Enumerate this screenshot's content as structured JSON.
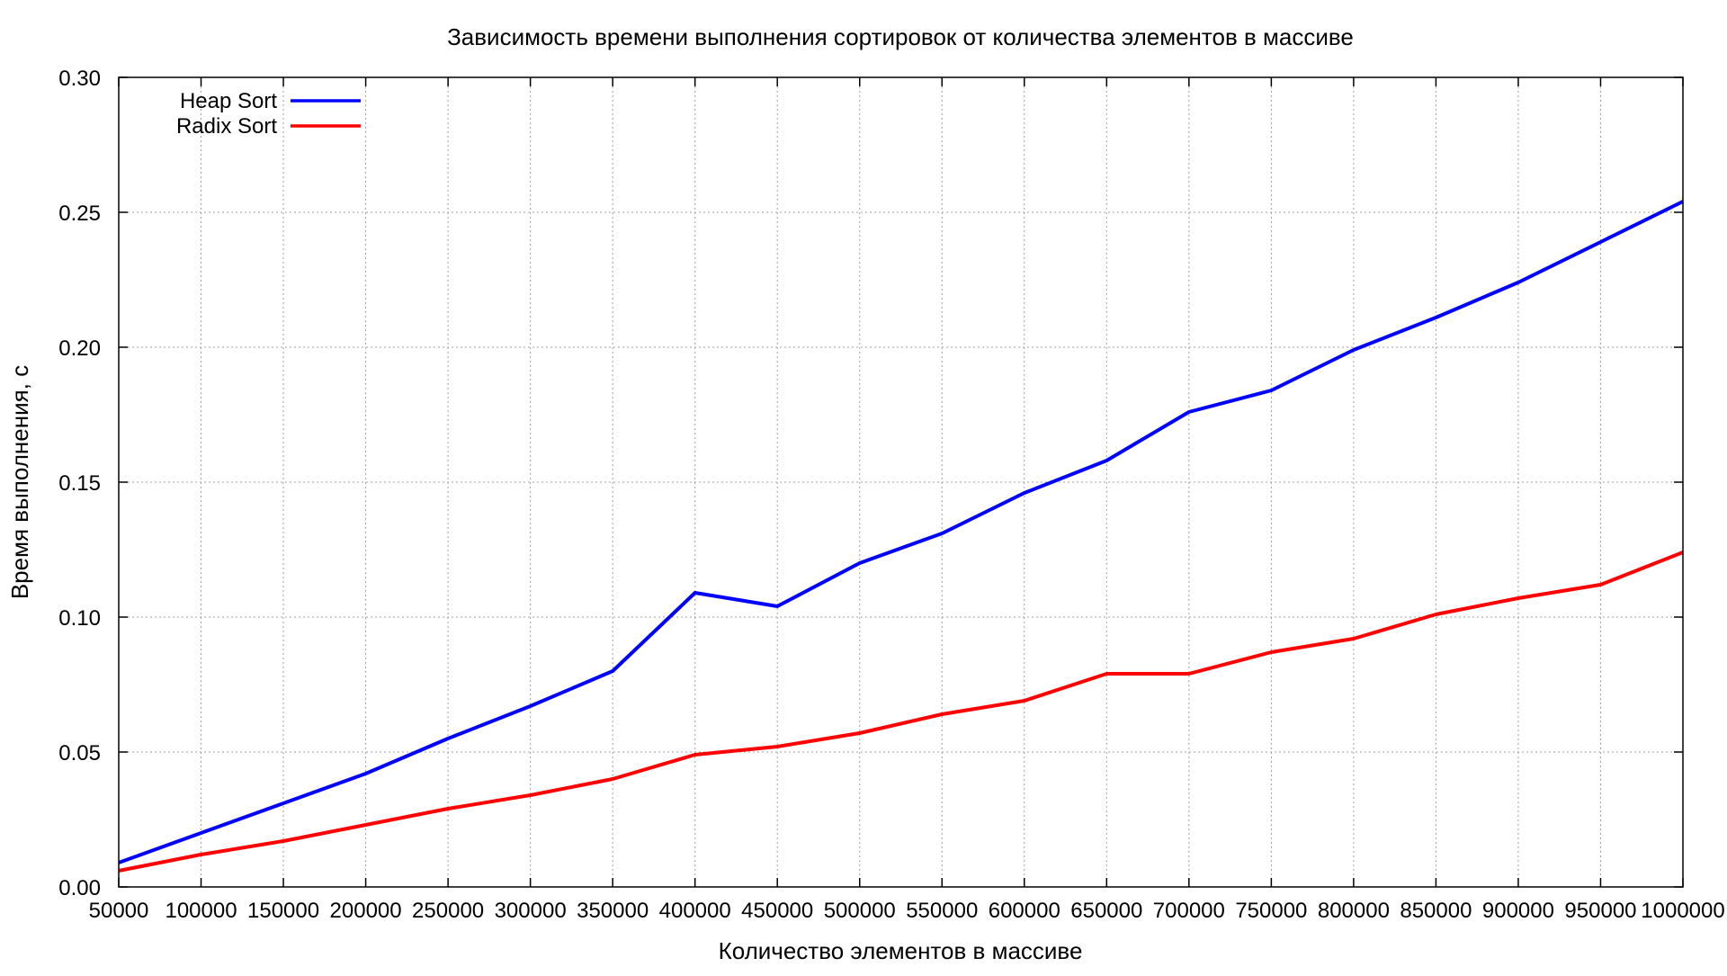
{
  "chart_data": {
    "type": "line",
    "title": "Зависимость времени выполнения сортировок от количества элементов в массиве",
    "xlabel": "Количество элементов в массиве",
    "ylabel": "Время выполнения, с",
    "xlim": [
      50000,
      1000000
    ],
    "ylim": [
      0,
      0.3
    ],
    "x_ticks": [
      50000,
      100000,
      150000,
      200000,
      250000,
      300000,
      350000,
      400000,
      450000,
      500000,
      550000,
      600000,
      650000,
      700000,
      750000,
      800000,
      850000,
      900000,
      950000,
      1000000
    ],
    "x_tick_labels": [
      "50000",
      "100000",
      "150000",
      "200000",
      "250000",
      "300000",
      "350000",
      "400000",
      "450000",
      "500000",
      "550000",
      "600000",
      "650000",
      "700000",
      "750000",
      "800000",
      "850000",
      "900000",
      "950000",
      "1000000"
    ],
    "y_ticks": [
      0,
      0.05,
      0.1,
      0.15,
      0.2,
      0.25,
      0.3
    ],
    "y_tick_labels": [
      "0.00",
      "0.05",
      "0.10",
      "0.15",
      "0.20",
      "0.25",
      "0.30"
    ],
    "grid": true,
    "legend_position": "top-left",
    "x": [
      50000,
      100000,
      150000,
      200000,
      250000,
      300000,
      350000,
      400000,
      450000,
      500000,
      550000,
      600000,
      650000,
      700000,
      750000,
      800000,
      850000,
      900000,
      950000,
      1000000
    ],
    "series": [
      {
        "name": "Heap Sort",
        "color": "#0000ff",
        "values": [
          0.009,
          0.02,
          0.031,
          0.042,
          0.055,
          0.067,
          0.08,
          0.109,
          0.104,
          0.12,
          0.131,
          0.146,
          0.158,
          0.176,
          0.184,
          0.199,
          0.211,
          0.224,
          0.239,
          0.254
        ]
      },
      {
        "name": "Radix Sort",
        "color": "#ff0000",
        "values": [
          0.006,
          0.012,
          0.017,
          0.023,
          0.029,
          0.034,
          0.04,
          0.049,
          0.052,
          0.057,
          0.064,
          0.069,
          0.079,
          0.079,
          0.087,
          0.092,
          0.101,
          0.107,
          0.112,
          0.124
        ]
      }
    ]
  }
}
